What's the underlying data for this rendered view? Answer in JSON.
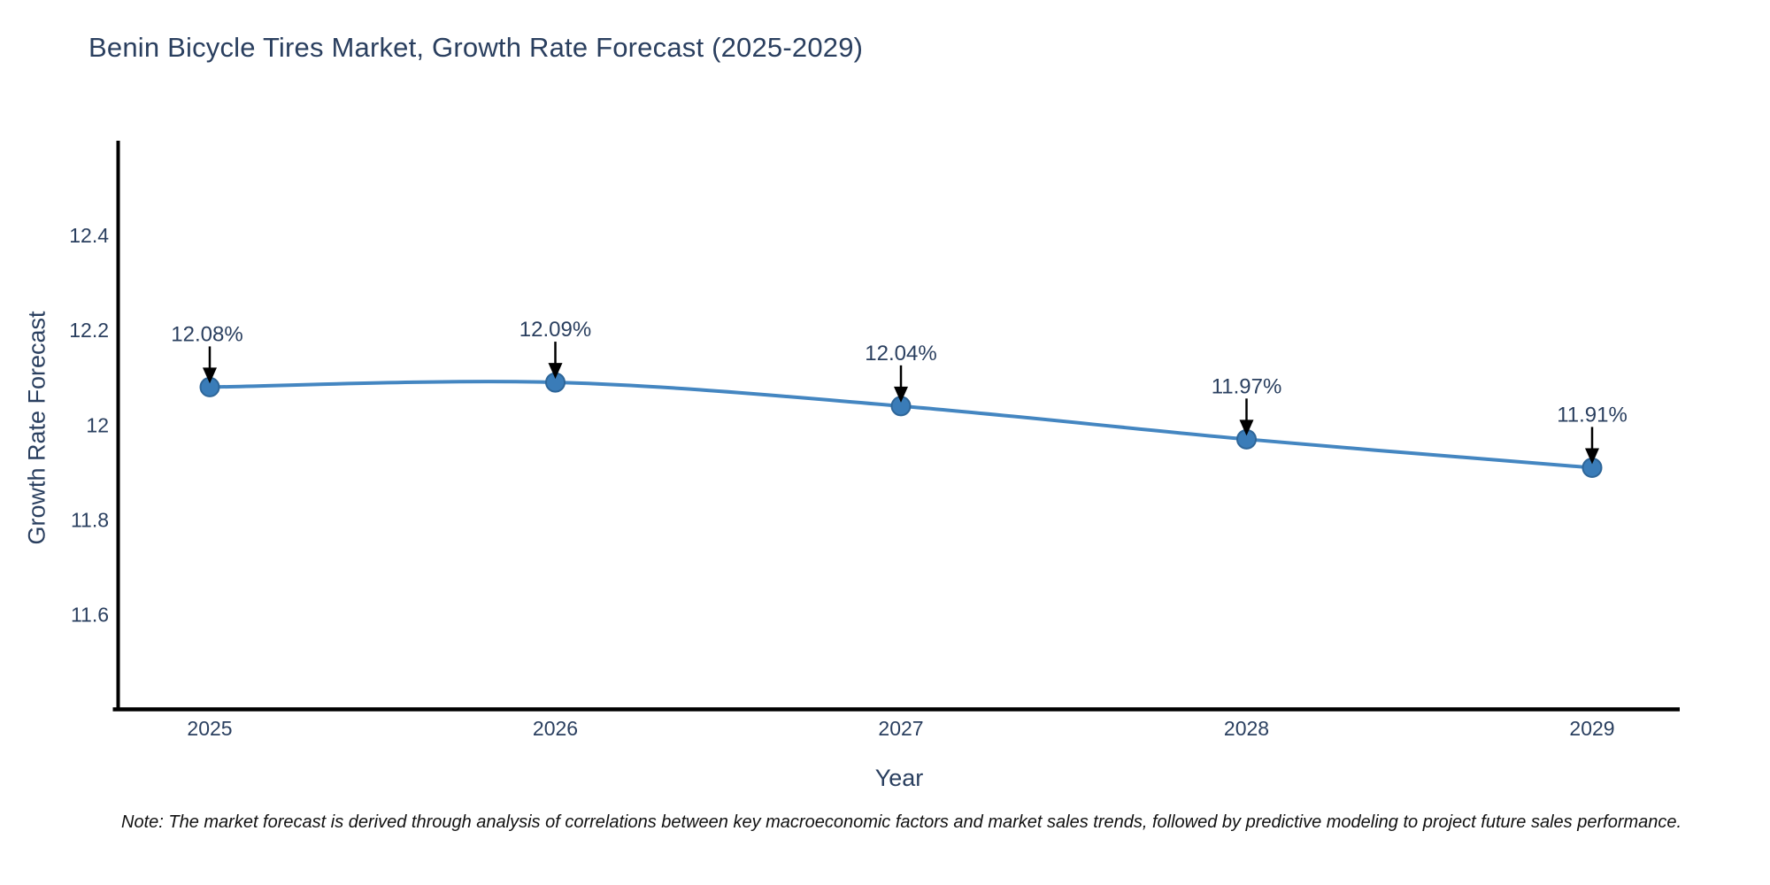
{
  "title": "Benin Bicycle Tires Market, Growth Rate Forecast (2025-2029)",
  "note": "Note: The market forecast is derived through analysis of correlations between key macroeconomic factors and market sales trends, followed by predictive modeling to project future sales performance.",
  "chart_data": {
    "type": "line",
    "title": "Benin Bicycle Tires Market, Growth Rate Forecast (2025-2029)",
    "xlabel": "Year",
    "ylabel": "Growth Rate Forecast",
    "categories": [
      "2025",
      "2026",
      "2027",
      "2028",
      "2029"
    ],
    "series": [
      {
        "name": "Growth Rate Forecast",
        "values": [
          12.08,
          12.09,
          12.04,
          11.97,
          11.91
        ]
      }
    ],
    "point_labels": [
      "12.08%",
      "12.09%",
      "12.04%",
      "11.97%",
      "11.91%"
    ],
    "yticks": [
      "12.4",
      "12.2",
      "12",
      "11.8",
      "11.6"
    ],
    "ytick_values": [
      12.4,
      12.2,
      12.0,
      11.8,
      11.6
    ],
    "ylim": [
      11.4,
      12.6
    ],
    "grid": false,
    "legend": "none",
    "annotations": "down-arrow percentage labels above each point",
    "colors": {
      "line": "#4486c1",
      "marker_fill": "#3a7cb8",
      "marker_edge": "#2e6699",
      "axis_line": "#000000",
      "tick_text": "#2a3f5f",
      "label_text": "#2a3f5f",
      "arrow": "#000000"
    }
  }
}
